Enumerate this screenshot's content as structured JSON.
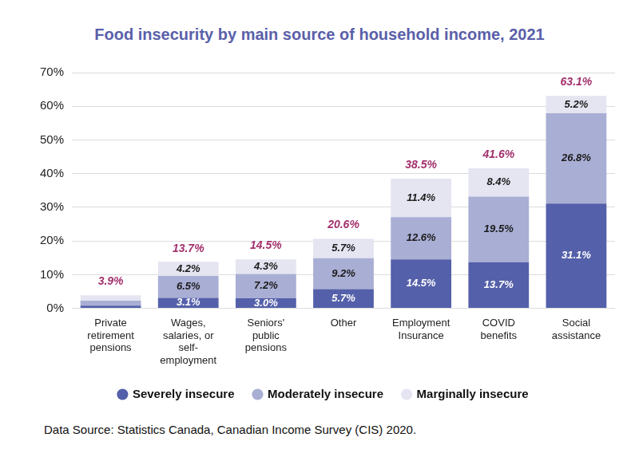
{
  "chart_data": {
    "type": "bar",
    "title": "Food insecurity by main source of household income, 2021",
    "source": "Data Source: Statistics Canada, Canadian Income Survey (CIS) 2020.",
    "categories": [
      "Private retirement pensions",
      "Wages, salaries, or self-employment",
      "Seniors' public pensions",
      "Other",
      "Employment Insurance",
      "COVID benefits",
      "Social assistance"
    ],
    "series": [
      {
        "name": "Severely insecure",
        "color": "#5460a9",
        "values": [
          0.8,
          3.1,
          3.0,
          5.7,
          14.5,
          13.7,
          31.1
        ],
        "value_labels": [
          null,
          "3.1%",
          "3.0%",
          "5.7%",
          "14.5%",
          "13.7%",
          "31.1%"
        ]
      },
      {
        "name": "Moderately insecure",
        "color": "#a9aed4",
        "values": [
          1.5,
          6.5,
          7.2,
          9.2,
          12.6,
          19.5,
          26.8
        ],
        "value_labels": [
          null,
          "6.5%",
          "7.2%",
          "9.2%",
          "12.6%",
          "19.5%",
          "26.8%"
        ]
      },
      {
        "name": "Marginally insecure",
        "color": "#e4e5f1",
        "values": [
          1.6,
          4.2,
          4.3,
          5.7,
          11.4,
          8.4,
          5.2
        ],
        "value_labels": [
          null,
          "4.2%",
          "4.3%",
          "5.7%",
          "11.4%",
          "8.4%",
          "5.2%"
        ]
      }
    ],
    "totals": [
      3.9,
      13.7,
      14.5,
      20.6,
      38.5,
      41.6,
      63.1
    ],
    "total_labels": [
      "3.9%",
      "13.7%",
      "14.5%",
      "20.6%",
      "38.5%",
      "41.6%",
      "63.1%"
    ],
    "ylim": [
      0,
      70
    ],
    "yticks": [
      {
        "value": 0,
        "label": "0%"
      },
      {
        "value": 10,
        "label": "10%"
      },
      {
        "value": 20,
        "label": "20%"
      },
      {
        "value": 30,
        "label": "30%"
      },
      {
        "value": 40,
        "label": "40%"
      },
      {
        "value": 50,
        "label": "50%"
      },
      {
        "value": 60,
        "label": "60%"
      },
      {
        "value": 70,
        "label": "70%"
      }
    ],
    "stacked": true,
    "data_labels": true,
    "grid": true,
    "legend": "bottom"
  }
}
